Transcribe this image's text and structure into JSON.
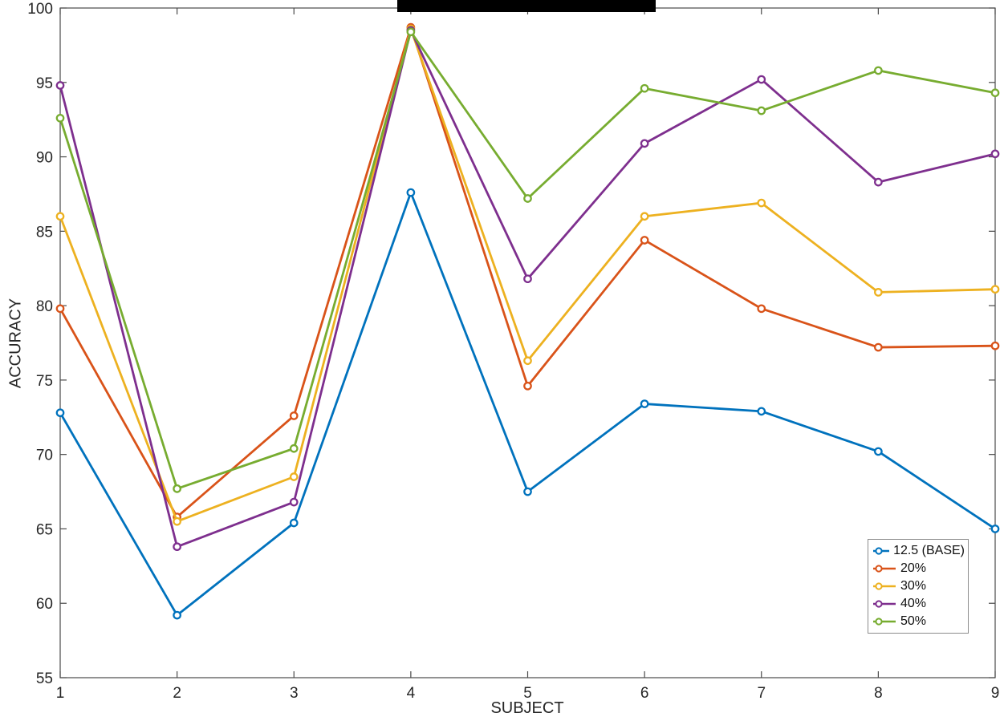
{
  "figure": {
    "background": "#ffffff",
    "title_redacted": true,
    "redacted_bar_color": "#000000"
  },
  "chart_data": {
    "type": "line",
    "title": "",
    "xlabel": "SUBJECT",
    "ylabel": "ACCURACY",
    "x": [
      1,
      2,
      3,
      4,
      5,
      6,
      7,
      8,
      9
    ],
    "xlim": [
      1,
      9
    ],
    "ylim": [
      55,
      100
    ],
    "xticks": [
      1,
      2,
      3,
      4,
      5,
      6,
      7,
      8,
      9
    ],
    "yticks": [
      55,
      60,
      65,
      70,
      75,
      80,
      85,
      90,
      95,
      100
    ],
    "grid": false,
    "box": true,
    "legend_position": "bottom-right-inside",
    "axis_color": "#4a4a4a",
    "text_color": "#262626",
    "marker": "o",
    "series": [
      {
        "name": "12.5 (BASE)",
        "color": "#0072BD",
        "values": [
          72.8,
          59.2,
          65.4,
          87.6,
          67.5,
          73.4,
          72.9,
          70.2,
          65.0
        ]
      },
      {
        "name": "20%",
        "color": "#D95319",
        "values": [
          79.8,
          65.8,
          72.6,
          98.7,
          74.6,
          84.4,
          79.8,
          77.2,
          77.3
        ]
      },
      {
        "name": "30%",
        "color": "#EDB120",
        "values": [
          86.0,
          65.5,
          68.5,
          98.6,
          76.3,
          86.0,
          86.9,
          80.9,
          81.1
        ]
      },
      {
        "name": "40%",
        "color": "#7E2F8E",
        "values": [
          94.8,
          63.8,
          66.8,
          98.5,
          81.8,
          90.9,
          95.2,
          88.3,
          90.2
        ]
      },
      {
        "name": "50%",
        "color": "#77AC30",
        "values": [
          92.6,
          67.7,
          70.4,
          98.4,
          87.2,
          94.6,
          93.1,
          95.8,
          94.3
        ]
      }
    ]
  }
}
